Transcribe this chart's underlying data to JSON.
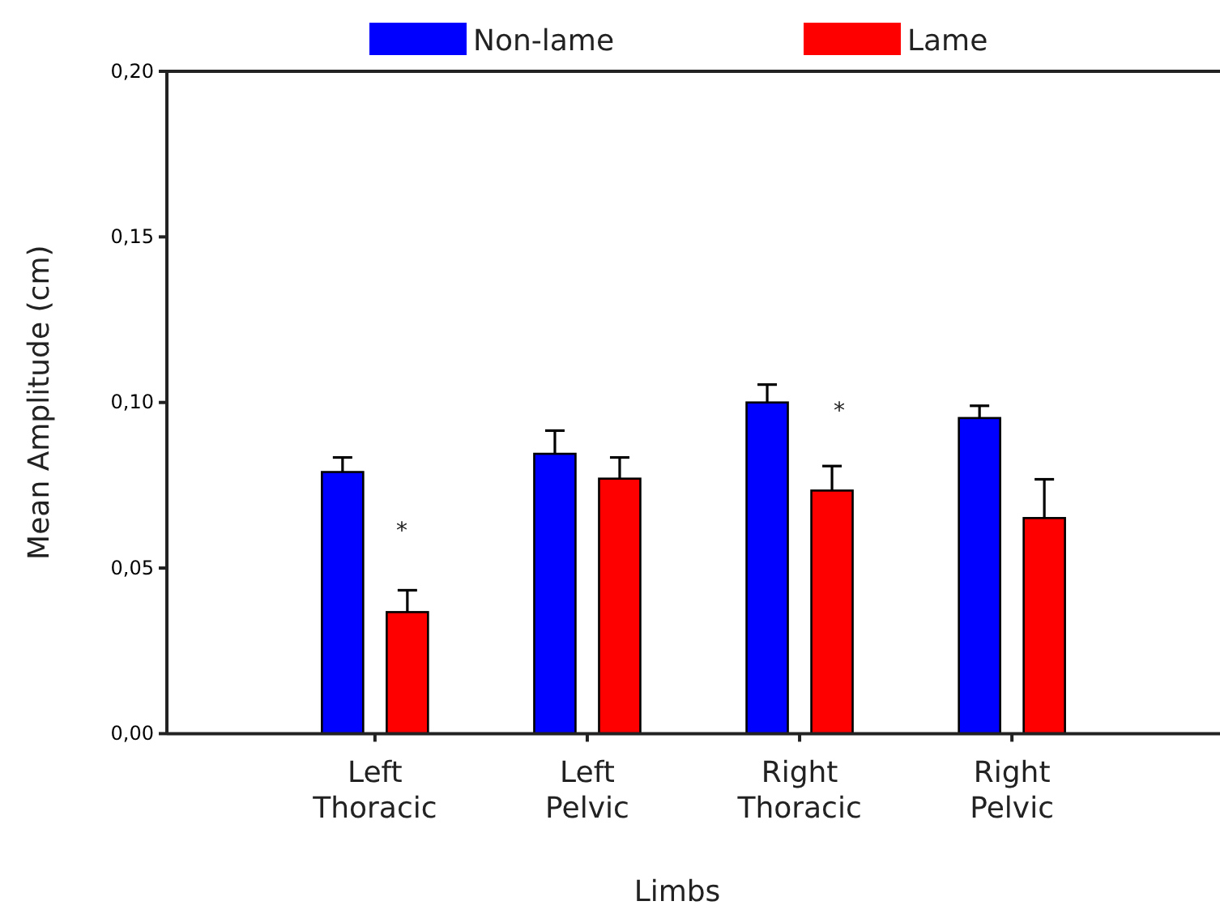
{
  "chart_data": {
    "type": "bar",
    "xlabel": "Limbs",
    "ylabel": "Mean Amplitude (cm)",
    "categories": [
      "Left Thoracic",
      "Left Pelvic",
      "Right Thoracic",
      "Right Pelvic"
    ],
    "series": [
      {
        "name": "Non-lame",
        "color": "#0000ff",
        "values": [
          0.079,
          0.0845,
          0.1,
          0.0953
        ],
        "errors": [
          [
            0.079,
            0.0834
          ],
          [
            0.0845,
            0.0915
          ],
          [
            0.1,
            0.1054
          ],
          [
            0.0953,
            0.099
          ]
        ]
      },
      {
        "name": "Lame",
        "color": "#ff0000",
        "values": [
          0.0367,
          0.077,
          0.0734,
          0.0651
        ],
        "errors": [
          [
            0.0367,
            0.0433
          ],
          [
            0.077,
            0.0834
          ],
          [
            0.0734,
            0.0808
          ],
          [
            0.0651,
            0.0768
          ]
        ]
      }
    ],
    "ylim": [
      0,
      0.2
    ],
    "yticks": [
      {
        "value": 0,
        "label": "0,00"
      },
      {
        "value": 0.05,
        "label": "0,05"
      },
      {
        "value": 0.1,
        "label": "0,10"
      },
      {
        "value": 0.15,
        "label": "0,15"
      },
      {
        "value": 0.2,
        "label": "0,20"
      }
    ],
    "annotations": [
      "*",
      "*"
    ],
    "legend": "top",
    "grid": false
  }
}
